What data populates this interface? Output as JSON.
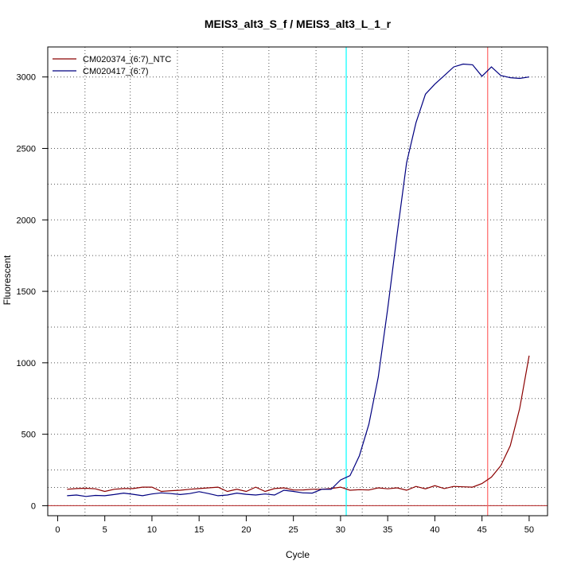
{
  "chart_data": {
    "type": "line",
    "title": "MEIS3_alt3_S_f / MEIS3_alt3_L_1_r",
    "xlabel": "Cycle",
    "ylabel": "Fluorescent",
    "xlim": [
      -1.05,
      51.95
    ],
    "ylim": [
      -70,
      3210
    ],
    "xticks": [
      0,
      5,
      10,
      15,
      20,
      25,
      30,
      35,
      40,
      45,
      50
    ],
    "yticks": [
      0,
      500,
      1000,
      1500,
      2000,
      2500,
      3000
    ],
    "vertical_gridlines": [
      2.9,
      7.7,
      12.7,
      17.5,
      22.4,
      27.4,
      32.3,
      37.2,
      42.2,
      47.1
    ],
    "horizontal_gridlines": [
      0,
      128,
      250,
      500,
      750,
      1000,
      1250,
      1500,
      1750,
      2000,
      2250,
      2500,
      2750,
      3000
    ],
    "threshold_y": 0,
    "threshold_color": "#b22222",
    "marker_lines": [
      {
        "x": 30.6,
        "color": "#00ffff"
      },
      {
        "x": 45.6,
        "color": "#ff6666"
      }
    ],
    "legend_position": "top-left",
    "series": [
      {
        "name": "CM020374_(6:7)_NTC",
        "color": "#8b0000",
        "x": [
          1,
          2,
          3,
          4,
          5,
          6,
          7,
          8,
          9,
          10,
          11,
          12,
          13,
          14,
          15,
          16,
          17,
          18,
          19,
          20,
          21,
          22,
          23,
          24,
          25,
          26,
          27,
          28,
          29,
          30,
          31,
          32,
          33,
          34,
          35,
          36,
          37,
          38,
          39,
          40,
          41,
          42,
          43,
          44,
          45,
          46,
          47,
          48,
          49,
          50
        ],
        "values": [
          115,
          120,
          122,
          118,
          100,
          115,
          120,
          120,
          130,
          130,
          100,
          105,
          108,
          115,
          120,
          125,
          130,
          100,
          115,
          100,
          130,
          100,
          120,
          125,
          110,
          110,
          115,
          115,
          120,
          130,
          108,
          112,
          110,
          125,
          118,
          125,
          108,
          135,
          118,
          140,
          120,
          135,
          132,
          130,
          155,
          200,
          280,
          420,
          680,
          1050
        ]
      },
      {
        "name": "CM020417_(6:7)",
        "color": "#000080",
        "x": [
          1,
          2,
          3,
          4,
          5,
          6,
          7,
          8,
          9,
          10,
          11,
          12,
          13,
          14,
          15,
          16,
          17,
          18,
          19,
          20,
          21,
          22,
          23,
          24,
          25,
          26,
          27,
          28,
          29,
          30,
          31,
          32,
          33,
          34,
          35,
          36,
          37,
          38,
          39,
          40,
          41,
          42,
          43,
          44,
          45,
          46,
          47,
          48,
          49,
          50
        ],
        "values": [
          70,
          75,
          65,
          72,
          70,
          78,
          88,
          80,
          70,
          82,
          90,
          85,
          78,
          85,
          98,
          85,
          70,
          75,
          88,
          80,
          75,
          82,
          75,
          108,
          100,
          90,
          88,
          115,
          115,
          180,
          210,
          350,
          570,
          900,
          1380,
          1900,
          2400,
          2680,
          2880,
          2950,
          3010,
          3070,
          3090,
          3085,
          3005,
          3070,
          3010,
          2995,
          2990,
          3000
        ]
      }
    ]
  }
}
